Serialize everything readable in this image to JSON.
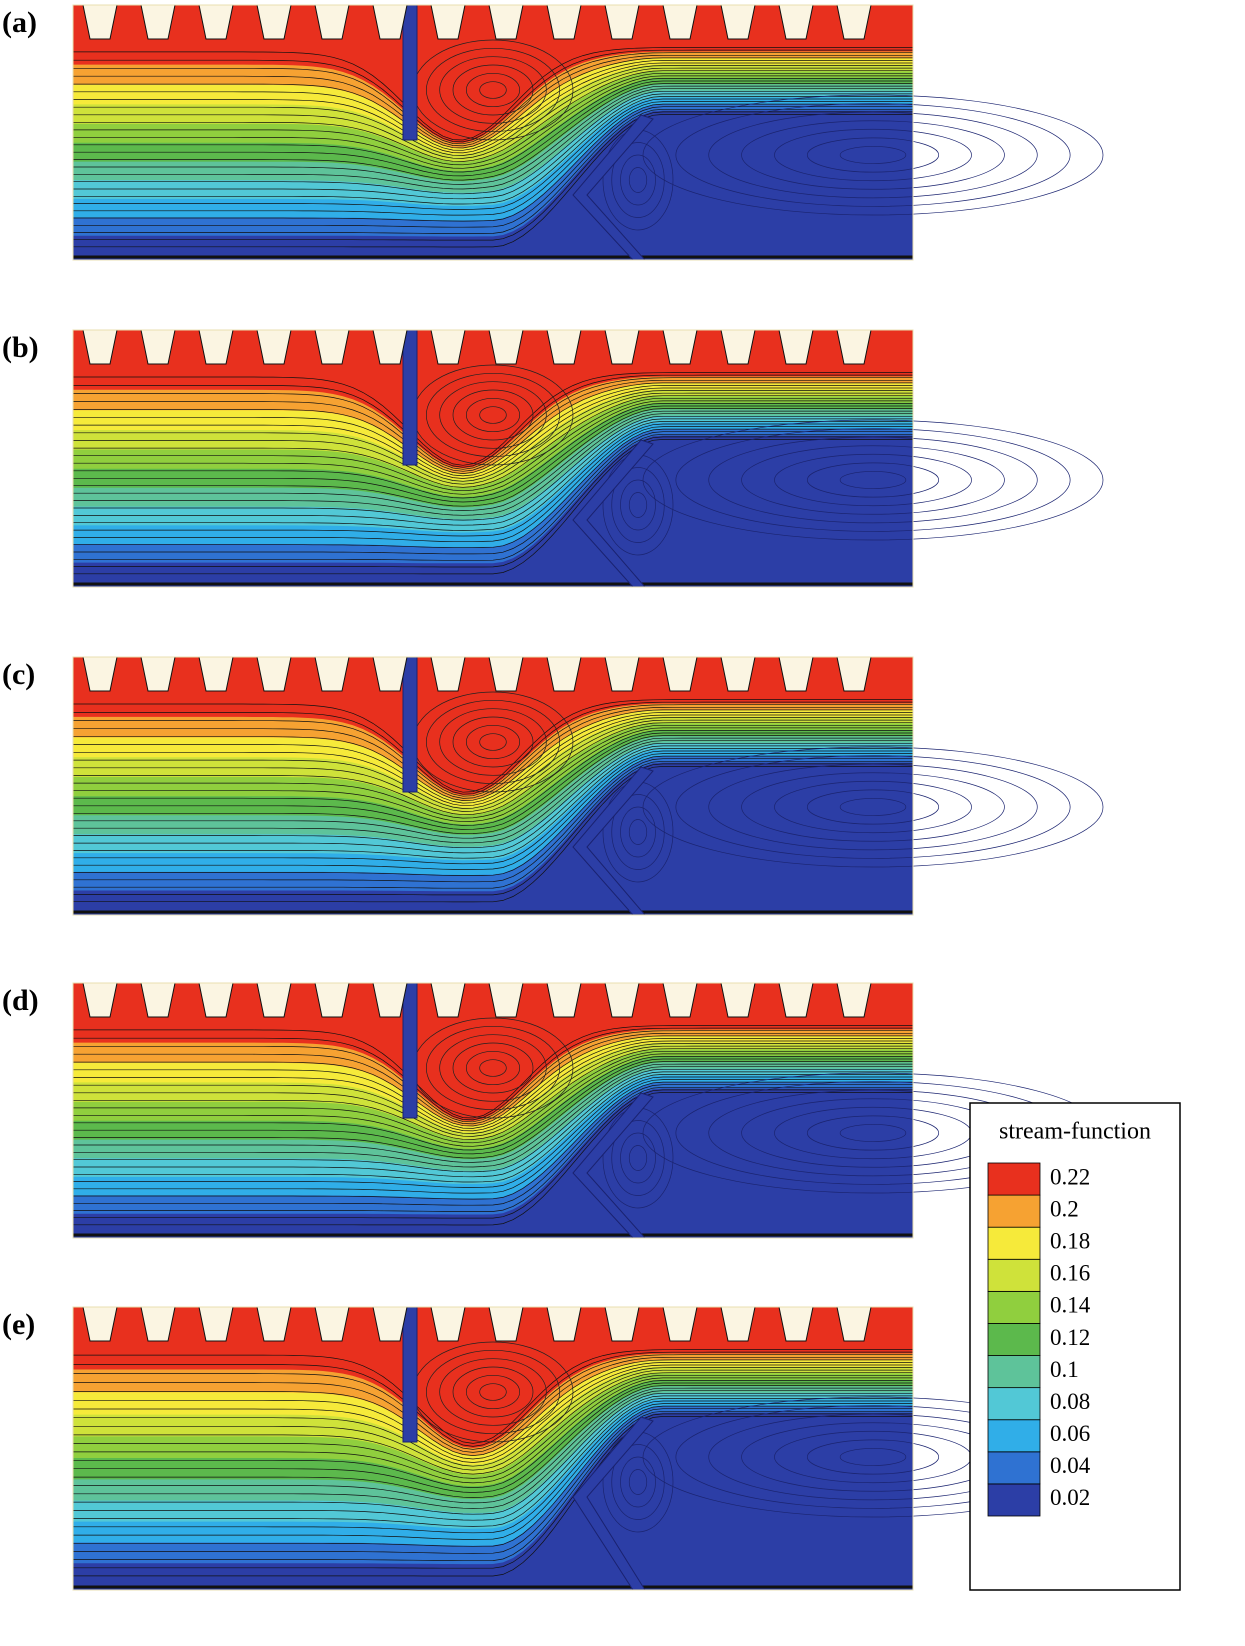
{
  "figure": {
    "panels": [
      "(a)",
      "(b)",
      "(c)",
      "(d)",
      "(e)"
    ],
    "colorbar": {
      "title": "stream-function",
      "range": [
        0.01,
        0.23
      ],
      "ticks": [
        0.02,
        0.04,
        0.06,
        0.08,
        0.1,
        0.12,
        0.14,
        0.16,
        0.18,
        0.2,
        0.22
      ],
      "colors": [
        "#2c3ea6",
        "#2f72d2",
        "#30aee8",
        "#52c8d6",
        "#5ec39a",
        "#5cb94c",
        "#90cf3e",
        "#cfe23a",
        "#f6ea3a",
        "#f6a232",
        "#e8301e"
      ]
    }
  }
}
